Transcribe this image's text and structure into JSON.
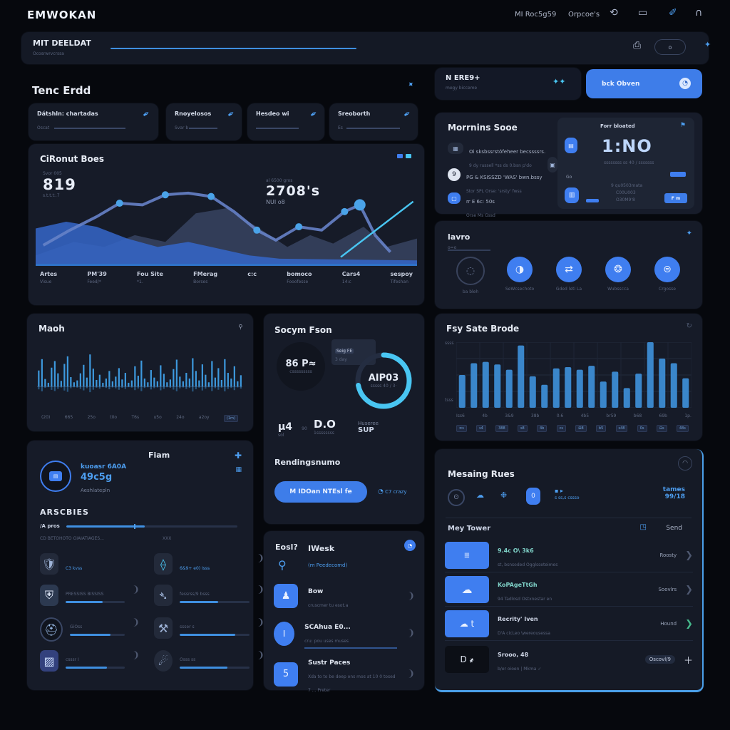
{
  "topnav": {
    "logo": "EMWOKAN",
    "link1": "MI Roc5g59",
    "link2": "Orpcoe's"
  },
  "header": {
    "title": "MIT DEELDAT",
    "subtitle": "Ocosrwrvcrssa",
    "badge": "o"
  },
  "overview": {
    "section_title": "Tenc Erdd",
    "mini_cards": [
      {
        "title": "Dátshln: chartadas",
        "sub": "Oscat"
      },
      {
        "title": "Rnoyelosos",
        "sub": "Svar b"
      },
      {
        "title": "Hesdeo wi",
        "sub": "Hrsse"
      },
      {
        "title": "Sreoborth",
        "sub": "Es"
      }
    ],
    "chart_card": {
      "title": "CiRonut Boes",
      "stat1_label": "Svor 005",
      "stat1_value": "819",
      "stat1_sub": "s.t.t.t:.7",
      "stat2_label": "al 6500 gros",
      "stat2_value": "2708's",
      "stat2_sub": "NUI o8",
      "x_axis": [
        {
          "label": "Artes",
          "sub": "Visue"
        },
        {
          "label": "PM'39",
          "sub": "Feed/*"
        },
        {
          "label": "Fou Site",
          "sub": "*1."
        },
        {
          "label": "FMerag",
          "sub": "Borses"
        },
        {
          "label": "c:c",
          "sub": ""
        },
        {
          "label": "bomoco",
          "sub": "Fooofesse"
        },
        {
          "label": "Cars4",
          "sub": "14:c"
        },
        {
          "label": "sespoy",
          "sub": "Tifeshan"
        }
      ]
    },
    "march": {
      "title": "Maoh",
      "ticks": [
        "(20)",
        "665",
        "25o",
        "t0o",
        "T6s",
        "u5o",
        "24o",
        "a2oy",
        "(1m)"
      ]
    },
    "flam": {
      "title": "Fiam",
      "line1": "kuoasr 6A0A",
      "line2": "49c5g",
      "line3": "Aeshlatepln",
      "section": "ARSCBIES",
      "bar1_label": "/A pros",
      "bar2_label": "CD BETOHOTO GIAIATIAGES...",
      "bar2_value": "XXX",
      "grid": [
        {
          "label": "C3 kvss",
          "pct": 0
        },
        {
          "label": "6&9+ e0) Isss",
          "pct": 0
        },
        {
          "label": "PRESSISS BISSISS",
          "pct": 62
        },
        {
          "label": "fessrss/9 bsss",
          "pct": 55
        },
        {
          "label": "GiOss",
          "pct": 74
        },
        {
          "label": "ssser s",
          "pct": 80
        },
        {
          "label": "csssr I",
          "pct": 70
        },
        {
          "label": "Osss ss",
          "pct": 68
        }
      ]
    }
  },
  "socym": {
    "title": "Socym Fson",
    "circle_value": "86 P≈",
    "circle_sub": "csssssssss",
    "tooltip_line1": "Seig FE",
    "tooltip_line2": "3 day",
    "donut_label": "AIP03",
    "donut_sub": "sssss 40 / 3·",
    "stat1_value": "µ4",
    "stat1_sub": "sol",
    "stat1_extra": "90",
    "stat2_value": "D.O",
    "stat2_sub": "1ssssssss",
    "stat3_label": "Huseree",
    "stat3_value": "SUP",
    "heading": "Rendingsnumo",
    "button": "M IDOan NTEsl fe",
    "side_note": "C7 crazy"
  },
  "eosio": {
    "title": "Eosl?",
    "title2": "IWesk",
    "link": "(m Peedecomd)",
    "items": [
      {
        "title": "Bow",
        "sub": "cruscmer tu esot.a"
      },
      {
        "title": "SCAhua E0...",
        "sub": "cru: pou uses muses"
      },
      {
        "title": "Sustr Paces",
        "sub": "Xda to to be deep ons mos at 10 0 tosed 7 ... Preter"
      }
    ]
  },
  "right": {
    "erse_title": "N ERE9+",
    "erse_sub": "megy bicceme",
    "cta": "bck Obven",
    "mornins": {
      "title": "Morrnins Sooe",
      "items": [
        {
          "text": "Oi sksbssrstófeheer becssssrs.",
          "sub": "9 dy russell *ss ds 0.bsn p'do"
        },
        {
          "text": "PG & KSISSZD 'WAS' bwn.bssy",
          "sub": "Stor SPL Orse: 'srsty' fwss"
        },
        {
          "text": "rr E 6c: 50s",
          "sub": "Orse Ms Gssd"
        }
      ],
      "panel_title": "Forr bloated",
      "panel_value": "1:NO",
      "panel_sub": "ssssssss ss 40 / sssssss",
      "panel_go": "Go",
      "panel_line1": "9 qu0503mata",
      "panel_line2": "C00U003",
      "panel_line3": "O30M9'8",
      "panel_btn": "F m"
    },
    "lavro": {
      "title": "lavro",
      "sub": "o=o",
      "items": [
        {
          "label": "ba bleh"
        },
        {
          "label": "SeWcsechoto"
        },
        {
          "label": "Gded leti La"
        },
        {
          "label": "Wubsscca"
        },
        {
          "label": "Crgosse"
        }
      ]
    },
    "fsy": {
      "title": "Fsy Sate Brode",
      "y_top": "ssss",
      "y_bottom": "tsss",
      "row1": [
        "Iss6",
        "4b",
        "3&9",
        "38b",
        "0.6",
        "4b5",
        "br59",
        "b68",
        "69b",
        "1p."
      ],
      "row2": [
        "≡s",
        "s4",
        "388",
        "s8",
        "4b",
        "cs",
        "⊞8",
        "b5",
        "s48",
        "0s",
        "⊟s",
        "48s"
      ]
    },
    "mesaing": {
      "title": "Mesaing Rues",
      "badge": "0",
      "icons_text": "s  ss,s  cssso",
      "right_line1": "tames",
      "right_line2": "99/18",
      "subheader": "Mey Tower",
      "send": "Send",
      "rows": [
        {
          "title": "9.4c O\\ 3k6",
          "sub": "st, bsnsoded   Ogglsseteimes",
          "status": "Roosty"
        },
        {
          "title": "KoPAgeTtGh",
          "sub": "94 Tadlosd   Ostxnestar en",
          "status": "Soovlrs"
        },
        {
          "title": "Recrity' Iven",
          "sub": "D'A cicLeo   \\wereousessa",
          "status": "Hound"
        },
        {
          "title": "Srooo, 48",
          "sub": "b/er oioen  |  Mkma ✓",
          "status": "Oscovl/9"
        }
      ]
    }
  },
  "chart_data": [
    {
      "id": "overview-line",
      "type": "area-line",
      "title": "CiRonut Boes",
      "x_labels": [
        "Artes",
        "PM'39",
        "Fou Site",
        "FMerag",
        "c:c",
        "bomoco",
        "Cars4",
        "sespoy"
      ],
      "ylim": [
        0,
        100
      ],
      "area_slate": [
        [
          0,
          10
        ],
        [
          10,
          26
        ],
        [
          18,
          20
        ],
        [
          26,
          34
        ],
        [
          34,
          26
        ],
        [
          42,
          60
        ],
        [
          50,
          66
        ],
        [
          58,
          44
        ],
        [
          66,
          20
        ],
        [
          72,
          34
        ],
        [
          78,
          24
        ],
        [
          86,
          44
        ],
        [
          92,
          20
        ],
        [
          100,
          30
        ]
      ],
      "area_blue": [
        [
          0,
          42
        ],
        [
          8,
          50
        ],
        [
          16,
          44
        ],
        [
          24,
          30
        ],
        [
          32,
          20
        ],
        [
          40,
          26
        ],
        [
          48,
          18
        ],
        [
          56,
          10
        ],
        [
          64,
          6
        ],
        [
          100,
          4
        ]
      ],
      "line": [
        [
          2,
          22
        ],
        [
          9,
          40
        ],
        [
          16,
          56
        ],
        [
          22,
          72
        ],
        [
          28,
          70
        ],
        [
          34,
          82
        ],
        [
          40,
          84
        ],
        [
          46,
          80
        ],
        [
          52,
          62
        ],
        [
          58,
          40
        ],
        [
          63,
          28
        ],
        [
          69,
          44
        ],
        [
          75,
          40
        ],
        [
          81,
          62
        ],
        [
          85,
          70
        ],
        [
          89,
          34
        ],
        [
          93,
          14
        ]
      ],
      "dots": [
        3,
        5,
        7,
        9,
        11,
        13
      ],
      "big_dot": [
        85,
        70
      ],
      "accent": [
        [
          80,
          8
        ],
        [
          99,
          74
        ]
      ]
    },
    {
      "id": "march-spikes",
      "type": "spikes",
      "color": "#3fa0e8",
      "baseline_pct": 72,
      "values": [
        34,
        58,
        16,
        8,
        40,
        54,
        28,
        12,
        48,
        64,
        20,
        9,
        13,
        28,
        46,
        19,
        68,
        38,
        14,
        25,
        8,
        17,
        33,
        11,
        21,
        39,
        15,
        29,
        8,
        13,
        43,
        23,
        55,
        17,
        9,
        35,
        19,
        11,
        45,
        27,
        9,
        15,
        37,
        57,
        21,
        11,
        29,
        17,
        60,
        33,
        13,
        47,
        25,
        9,
        54,
        19,
        39,
        14,
        58,
        29,
        17,
        43,
        11,
        24
      ]
    },
    {
      "id": "fsy-bars",
      "type": "bars",
      "color": "#3e8fd8",
      "grid": true,
      "values": [
        50,
        68,
        70,
        66,
        58,
        95,
        48,
        35,
        60,
        62,
        58,
        64,
        40,
        55,
        30,
        52,
        100,
        75,
        68,
        45
      ]
    },
    {
      "id": "socym-donut",
      "type": "donut",
      "percent": 72,
      "color": "#49c6f2",
      "track": "#242d41",
      "label": "AIP03"
    }
  ],
  "colors": {
    "accent": "#3f7ef0",
    "cyan": "#49c6f2",
    "bar": "#3e8fd8"
  },
  "progress": {
    "flam_bar1": 46,
    "flam_bar2": 78,
    "header_line": 100
  }
}
